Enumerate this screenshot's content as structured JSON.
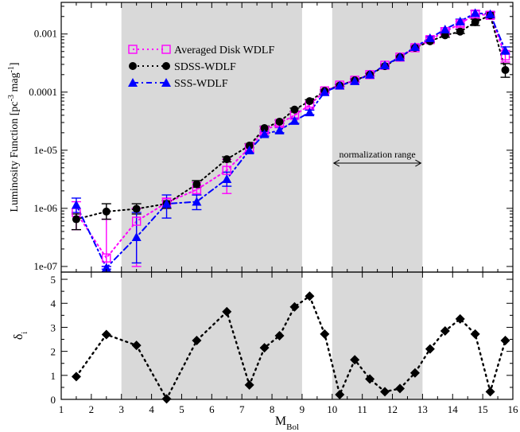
{
  "chart_data": [
    {
      "type": "scatter",
      "panel": "top",
      "ylabel": {
        "main": "Luminosity Function [pc",
        "sup1": "-3",
        "mid": " mag",
        "sup2": "-1",
        "end": "]"
      },
      "yscale": "log",
      "xlim": [
        1,
        16
      ],
      "ylim": [
        8e-08,
        0.0035
      ],
      "xticks": [
        1,
        2,
        3,
        4,
        5,
        6,
        7,
        8,
        9,
        10,
        11,
        12,
        13,
        14,
        15,
        16
      ],
      "yticks": [
        {
          "value": 1e-07,
          "label": "1e-07"
        },
        {
          "value": 1e-06,
          "label": "1e-06"
        },
        {
          "value": 1e-05,
          "label": "1e-05"
        },
        {
          "value": 0.0001,
          "label": "0.0001"
        },
        {
          "value": 0.001,
          "label": "0.001"
        }
      ],
      "shaded_ranges": [
        [
          3,
          9
        ],
        [
          10,
          13
        ]
      ],
      "annotation": {
        "text": "normalization range",
        "x_range": [
          10,
          13
        ]
      },
      "legend_position": "upper-left",
      "series": [
        {
          "name": "Averaged Disk WDLF",
          "marker": "open-square",
          "line": "dotted",
          "color": "#ff00ff",
          "points": [
            {
              "x": 1.5,
              "y": 8.5e-07,
              "lo": 4.3e-07,
              "hi": 1.3e-06
            },
            {
              "x": 2.5,
              "y": 1.4e-07,
              "lo": 1e-07,
              "hi": 6.5e-07
            },
            {
              "x": 3.5,
              "y": 6e-07,
              "lo": 1e-07,
              "hi": 1e-06
            },
            {
              "x": 4.5,
              "y": 1.25e-06,
              "lo": 1e-06,
              "hi": 1.5e-06
            },
            {
              "x": 5.5,
              "y": 2.1e-06,
              "lo": 1.7e-06,
              "hi": 2.8e-06
            },
            {
              "x": 6.5,
              "y": 4.5e-06,
              "lo": 1.8e-06,
              "hi": 7e-06
            },
            {
              "x": 7.25,
              "y": 1.1e-05,
              "lo": 9.5e-06,
              "hi": 1.25e-05
            },
            {
              "x": 7.75,
              "y": 2.2e-05,
              "lo": 2e-05,
              "hi": 2.5e-05
            },
            {
              "x": 8.25,
              "y": 2.9e-05,
              "lo": 2.6e-05,
              "hi": 3.2e-05
            },
            {
              "x": 8.75,
              "y": 4e-05,
              "lo": 3.6e-05,
              "hi": 4.6e-05
            },
            {
              "x": 9.25,
              "y": 6e-05,
              "lo": 5.5e-05,
              "hi": 6.6e-05
            },
            {
              "x": 9.75,
              "y": 0.000105,
              "lo": 9.8e-05,
              "hi": 0.00011
            },
            {
              "x": 10.25,
              "y": 0.000132,
              "lo": 0.000125,
              "hi": 0.00014
            },
            {
              "x": 10.75,
              "y": 0.00016,
              "lo": 0.00015,
              "hi": 0.00017
            },
            {
              "x": 11.25,
              "y": 0.0002,
              "lo": 0.00019,
              "hi": 0.00021
            },
            {
              "x": 11.75,
              "y": 0.00029,
              "lo": 0.000275,
              "hi": 0.000305
            },
            {
              "x": 12.25,
              "y": 0.0004,
              "lo": 0.00038,
              "hi": 0.00042
            },
            {
              "x": 12.75,
              "y": 0.00058,
              "lo": 0.00055,
              "hi": 0.00061
            },
            {
              "x": 13.25,
              "y": 0.0008,
              "lo": 0.00075,
              "hi": 0.00086
            },
            {
              "x": 13.75,
              "y": 0.0011,
              "lo": 0.001,
              "hi": 0.0012
            },
            {
              "x": 14.25,
              "y": 0.0015,
              "lo": 0.00135,
              "hi": 0.00165
            },
            {
              "x": 14.75,
              "y": 0.0022,
              "lo": 0.0019,
              "hi": 0.0025
            },
            {
              "x": 15.25,
              "y": 0.0021,
              "lo": 0.00185,
              "hi": 0.0024
            },
            {
              "x": 15.75,
              "y": 0.00042,
              "lo": 0.00033,
              "hi": 0.00052
            }
          ]
        },
        {
          "name": "SDSS-WDLF",
          "marker": "filled-circle",
          "line": "dotted",
          "color": "#000000",
          "points": [
            {
              "x": 1.5,
              "y": 6.5e-07,
              "lo": 4.3e-07,
              "hi": 8e-07
            },
            {
              "x": 2.5,
              "y": 8.8e-07,
              "lo": 6.5e-07,
              "hi": 1.2e-06
            },
            {
              "x": 3.5,
              "y": 9.8e-07,
              "lo": 8e-07,
              "hi": 1.2e-06
            },
            {
              "x": 4.5,
              "y": 1.2e-06,
              "lo": 1e-06,
              "hi": 1.35e-06
            },
            {
              "x": 5.5,
              "y": 2.6e-06,
              "lo": 2.3e-06,
              "hi": 3e-06
            },
            {
              "x": 6.5,
              "y": 7e-06,
              "lo": 6.3e-06,
              "hi": 7.7e-06
            },
            {
              "x": 7.25,
              "y": 1.2e-05,
              "lo": 1.1e-05,
              "hi": 1.3e-05
            },
            {
              "x": 7.75,
              "y": 2.4e-05,
              "lo": 2.25e-05,
              "hi": 2.6e-05
            },
            {
              "x": 8.25,
              "y": 3.1e-05,
              "lo": 2.9e-05,
              "hi": 3.3e-05
            },
            {
              "x": 8.75,
              "y": 5e-05,
              "lo": 4.7e-05,
              "hi": 5.3e-05
            },
            {
              "x": 9.25,
              "y": 7e-05,
              "lo": 6.6e-05,
              "hi": 7.4e-05
            },
            {
              "x": 9.75,
              "y": 0.000105,
              "lo": 0.0001,
              "hi": 0.00011
            },
            {
              "x": 10.25,
              "y": 0.00013,
              "lo": 0.000125,
              "hi": 0.000135
            },
            {
              "x": 10.75,
              "y": 0.00016,
              "lo": 0.00015,
              "hi": 0.00017
            },
            {
              "x": 11.25,
              "y": 0.0002,
              "lo": 0.00019,
              "hi": 0.00021
            },
            {
              "x": 11.75,
              "y": 0.00028,
              "lo": 0.00027,
              "hi": 0.00029
            },
            {
              "x": 12.25,
              "y": 0.0004,
              "lo": 0.000385,
              "hi": 0.000415
            },
            {
              "x": 12.75,
              "y": 0.00058,
              "lo": 0.00056,
              "hi": 0.0006
            },
            {
              "x": 13.25,
              "y": 0.00075,
              "lo": 0.00071,
              "hi": 0.0008
            },
            {
              "x": 13.75,
              "y": 0.00095,
              "lo": 0.00088,
              "hi": 0.00102
            },
            {
              "x": 14.25,
              "y": 0.0011,
              "lo": 0.00102,
              "hi": 0.0012
            },
            {
              "x": 14.75,
              "y": 0.0016,
              "lo": 0.0014,
              "hi": 0.0018
            },
            {
              "x": 15.25,
              "y": 0.0021,
              "lo": 0.0019,
              "hi": 0.00235
            },
            {
              "x": 15.75,
              "y": 0.00024,
              "lo": 0.00018,
              "hi": 0.00031
            }
          ]
        },
        {
          "name": "SSS-WDLF",
          "marker": "filled-triangle",
          "line": "dash-dot",
          "color": "#0000ff",
          "points": [
            {
              "x": 1.5,
              "y": 1.15e-06,
              "lo": 8.5e-07,
              "hi": 1.5e-06
            },
            {
              "x": 2.5,
              "y": 9.5e-08,
              "lo": 9e-08,
              "hi": 1e-07
            },
            {
              "x": 3.5,
              "y": 3.2e-07,
              "lo": 1.15e-07,
              "hi": 8.5e-07
            },
            {
              "x": 4.5,
              "y": 1.2e-06,
              "lo": 6.8e-07,
              "hi": 1.7e-06
            },
            {
              "x": 5.5,
              "y": 1.3e-06,
              "lo": 9.5e-07,
              "hi": 1.7e-06
            },
            {
              "x": 6.5,
              "y": 3.2e-06,
              "lo": 2.4e-06,
              "hi": 4.2e-06
            },
            {
              "x": 7.25,
              "y": 1e-05,
              "lo": 9e-06,
              "hi": 1.12e-05
            },
            {
              "x": 7.75,
              "y": 1.9e-05,
              "lo": 1.75e-05,
              "hi": 2.1e-05
            },
            {
              "x": 8.25,
              "y": 2.2e-05,
              "lo": 2e-05,
              "hi": 2.45e-05
            },
            {
              "x": 8.75,
              "y": 3.2e-05,
              "lo": 2.9e-05,
              "hi": 3.5e-05
            },
            {
              "x": 9.25,
              "y": 4.5e-05,
              "lo": 4.1e-05,
              "hi": 4.9e-05
            },
            {
              "x": 9.75,
              "y": 0.0001,
              "lo": 9.5e-05,
              "hi": 0.000105
            },
            {
              "x": 10.25,
              "y": 0.00013,
              "lo": 0.000124,
              "hi": 0.000136
            },
            {
              "x": 10.75,
              "y": 0.000155,
              "lo": 0.000148,
              "hi": 0.000162
            },
            {
              "x": 11.25,
              "y": 0.0002,
              "lo": 0.00019,
              "hi": 0.00021
            },
            {
              "x": 11.75,
              "y": 0.00029,
              "lo": 0.000275,
              "hi": 0.000305
            },
            {
              "x": 12.25,
              "y": 0.0004,
              "lo": 0.00038,
              "hi": 0.00042
            },
            {
              "x": 12.75,
              "y": 0.0006,
              "lo": 0.00057,
              "hi": 0.00063
            },
            {
              "x": 13.25,
              "y": 0.00085,
              "lo": 0.0008,
              "hi": 0.0009
            },
            {
              "x": 13.75,
              "y": 0.0012,
              "lo": 0.00112,
              "hi": 0.00128
            },
            {
              "x": 14.25,
              "y": 0.00165,
              "lo": 0.0015,
              "hi": 0.0018
            },
            {
              "x": 14.75,
              "y": 0.0023,
              "lo": 0.00205,
              "hi": 0.00255
            },
            {
              "x": 15.25,
              "y": 0.0022,
              "lo": 0.002,
              "hi": 0.00245
            },
            {
              "x": 15.75,
              "y": 0.00052,
              "lo": 0.00045,
              "hi": 0.0006
            }
          ]
        }
      ]
    },
    {
      "type": "scatter",
      "panel": "bottom",
      "xlabel": {
        "main": "M",
        "sub": "Bol"
      },
      "ylabel": {
        "main": "δ",
        "sub": "i"
      },
      "xlim": [
        1,
        16
      ],
      "ylim": [
        0,
        5.3
      ],
      "xticks": [
        1,
        2,
        3,
        4,
        5,
        6,
        7,
        8,
        9,
        10,
        11,
        12,
        13,
        14,
        15,
        16
      ],
      "yticks": [
        0,
        1,
        2,
        3,
        4,
        5
      ],
      "shaded_ranges": [
        [
          3,
          9
        ],
        [
          10,
          13
        ]
      ],
      "series": [
        {
          "marker": "filled-diamond",
          "line": "dotted",
          "color": "#000000",
          "points": [
            {
              "x": 1.5,
              "y": 0.95
            },
            {
              "x": 2.5,
              "y": 2.7
            },
            {
              "x": 3.5,
              "y": 2.25
            },
            {
              "x": 4.5,
              "y": 0.02
            },
            {
              "x": 5.5,
              "y": 2.45
            },
            {
              "x": 6.5,
              "y": 3.65
            },
            {
              "x": 7.25,
              "y": 0.6
            },
            {
              "x": 7.75,
              "y": 2.15
            },
            {
              "x": 8.25,
              "y": 2.65
            },
            {
              "x": 8.75,
              "y": 3.85
            },
            {
              "x": 9.25,
              "y": 4.3
            },
            {
              "x": 9.75,
              "y": 2.72
            },
            {
              "x": 10.25,
              "y": 0.2
            },
            {
              "x": 10.75,
              "y": 1.65
            },
            {
              "x": 11.25,
              "y": 0.85
            },
            {
              "x": 11.75,
              "y": 0.32
            },
            {
              "x": 12.25,
              "y": 0.45
            },
            {
              "x": 12.75,
              "y": 1.1
            },
            {
              "x": 13.25,
              "y": 2.1
            },
            {
              "x": 13.75,
              "y": 2.85
            },
            {
              "x": 14.25,
              "y": 3.35
            },
            {
              "x": 14.75,
              "y": 2.72
            },
            {
              "x": 15.25,
              "y": 0.32
            },
            {
              "x": 15.75,
              "y": 2.45
            }
          ]
        }
      ]
    }
  ]
}
